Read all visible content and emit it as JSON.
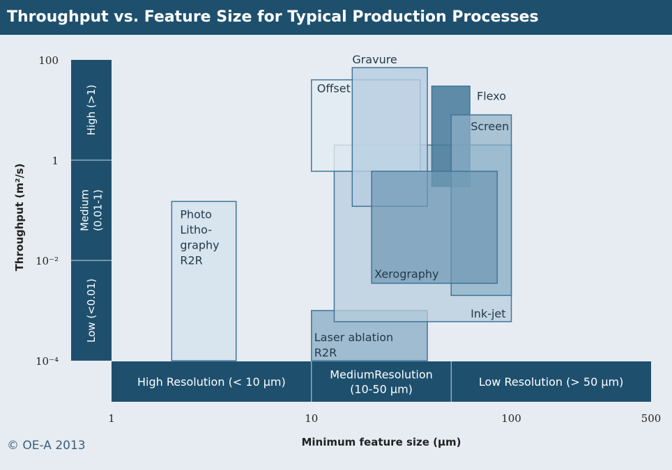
{
  "figure": {
    "title": "Throughput vs. Feature Size for Typical Production Processes",
    "copyright": "© OE-A 2013"
  },
  "colors": {
    "title_bar": "#1e506e",
    "panel_background": "#e7ecf2",
    "band_fill": "#1e506e",
    "band_text": "#ffffff",
    "photo_lithography": "#d8e4ee",
    "laser_ablation": "#a0bcd0",
    "inkjet": "#b8cddd",
    "offset": "#e3ecf3",
    "gravure": "#b6cde0",
    "flexo": "#4b7d9c",
    "screen": "#8fb1c8",
    "xerography": "#6f98b4",
    "outline": "#3f7597"
  },
  "chart_data": {
    "type": "area",
    "title": "Throughput vs. Feature Size for Typical Production Processes",
    "xlabel": "Minimum feature size (µm)",
    "ylabel": "Throughput (m²/s)",
    "x_scale": "log",
    "y_scale": "log",
    "xlim": [
      1,
      500
    ],
    "ylim": [
      0.0001,
      100
    ],
    "x_ticks": [
      {
        "value": 1,
        "label": "1"
      },
      {
        "value": 10,
        "label": "10"
      },
      {
        "value": 100,
        "label": "100"
      },
      {
        "value": 500,
        "label": "500"
      }
    ],
    "y_ticks": [
      {
        "value": 100,
        "label": "100"
      },
      {
        "value": 1,
        "label": "1"
      },
      {
        "value": 0.01,
        "label": "10⁻²"
      },
      {
        "value": 0.0001,
        "label": "10⁻⁴"
      }
    ],
    "grid": false,
    "throughput_bands": [
      {
        "label": "High (>1)",
        "y_range": [
          1,
          100
        ]
      },
      {
        "label": "Medium (0.01-1)",
        "lines": [
          "Medium",
          "(0.01-1)"
        ],
        "y_range": [
          0.01,
          1
        ]
      },
      {
        "label": "Low (<0.01)",
        "y_range": [
          0.0001,
          0.01
        ]
      }
    ],
    "resolution_bands": [
      {
        "label": "High Resolution (< 10 µm)",
        "lines": [
          "High Resolution (< 10 µm)"
        ],
        "x_range": [
          1,
          10
        ]
      },
      {
        "label": "MediumResolution (10-50 µm)",
        "lines": [
          "MediumResolution",
          "(10-50 µm)"
        ],
        "x_range": [
          10,
          50
        ]
      },
      {
        "label": "Low Resolution (> 50 µm)",
        "lines": [
          "Low Resolution (> 50 µm)"
        ],
        "x_range": [
          50,
          500
        ]
      }
    ],
    "processes": [
      {
        "name": "Photo Lithography R2R",
        "lines": [
          "Photo",
          "Litho-",
          "graphy",
          "R2R"
        ],
        "x_range": [
          2,
          4.2
        ],
        "y_range": [
          0.0001,
          0.15
        ],
        "color_key": "photo_lithography",
        "opacity": 1.0
      },
      {
        "name": "Laser ablation R2R",
        "lines": [
          "Laser ablation",
          "R2R"
        ],
        "x_range": [
          10,
          38
        ],
        "y_range": [
          0.0001,
          0.001
        ],
        "color_key": "laser_ablation",
        "opacity": 1.0
      },
      {
        "name": "Ink-jet",
        "lines": [
          "Ink-jet"
        ],
        "x_range": [
          13,
          100
        ],
        "y_range": [
          0.0006,
          2
        ],
        "color_key": "inkjet",
        "opacity": 0.75
      },
      {
        "name": "Offset",
        "lines": [
          "Offset"
        ],
        "x_range": [
          10,
          35
        ],
        "y_range": [
          0.6,
          40
        ],
        "color_key": "offset",
        "opacity": 0.8
      },
      {
        "name": "Gravure",
        "lines": [
          "Gravure"
        ],
        "x_range": [
          16,
          38
        ],
        "y_range": [
          0.12,
          70
        ],
        "color_key": "gravure",
        "opacity": 0.8
      },
      {
        "name": "Flexo",
        "lines": [
          "Flexo"
        ],
        "x_range": [
          40,
          62
        ],
        "y_range": [
          0.3,
          30
        ],
        "color_key": "flexo",
        "opacity": 0.88
      },
      {
        "name": "Screen",
        "lines": [
          "Screen"
        ],
        "x_range": [
          50,
          100
        ],
        "y_range": [
          0.002,
          8
        ],
        "color_key": "screen",
        "opacity": 0.7
      },
      {
        "name": "Xerography",
        "lines": [
          "Xerography"
        ],
        "x_range": [
          20,
          85
        ],
        "y_range": [
          0.0035,
          0.6
        ],
        "color_key": "xerography",
        "opacity": 0.72
      }
    ]
  }
}
